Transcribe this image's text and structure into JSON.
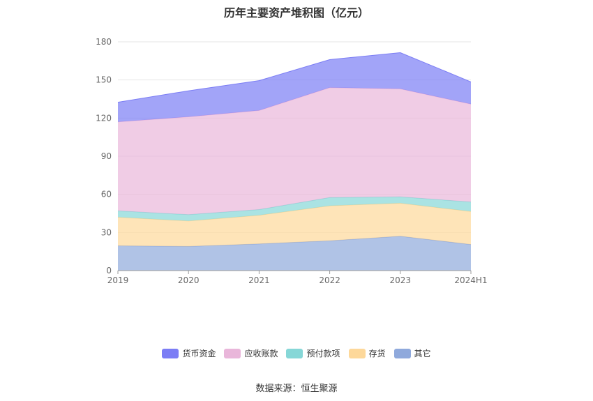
{
  "chart_data": {
    "type": "area",
    "stacked": true,
    "title": "历年主要资产堆积图（亿元）",
    "categories": [
      "2019",
      "2020",
      "2021",
      "2022",
      "2023",
      "2024H1"
    ],
    "ylim": [
      0,
      180
    ],
    "yticks": [
      0,
      30,
      60,
      90,
      120,
      150,
      180
    ],
    "grid": true,
    "legend_position": "bottom",
    "series": [
      {
        "name": "其它",
        "color": "#8fa9dc",
        "values": [
          19.5,
          19.0,
          21.0,
          23.5,
          27.0,
          20.5
        ]
      },
      {
        "name": "存货",
        "color": "#fdd89a",
        "values": [
          22.5,
          20.0,
          22.5,
          27.5,
          26.0,
          26.0
        ]
      },
      {
        "name": "预付款项",
        "color": "#86d7d7",
        "values": [
          5.0,
          5.0,
          4.5,
          6.5,
          5.0,
          7.5
        ]
      },
      {
        "name": "应收账款",
        "color": "#e9b6da",
        "values": [
          70.0,
          77.0,
          78.0,
          86.5,
          85.0,
          77.0
        ]
      },
      {
        "name": "货币资金",
        "color": "#7b7df5",
        "values": [
          15.5,
          20.5,
          23.5,
          22.0,
          28.5,
          17.5
        ]
      }
    ],
    "legend_order": [
      "货币资金",
      "应收账款",
      "预付款项",
      "存货",
      "其它"
    ]
  },
  "source": "数据来源：恒生聚源"
}
